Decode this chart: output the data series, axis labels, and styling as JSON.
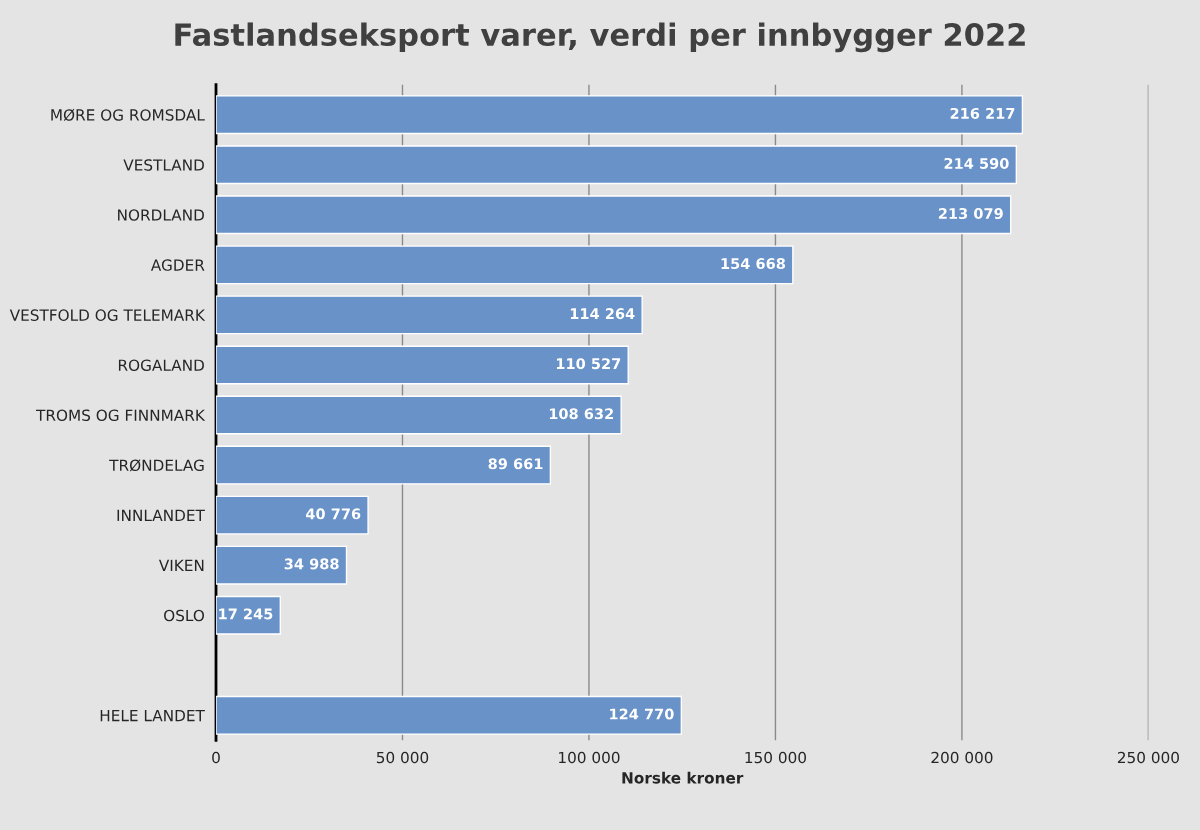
{
  "chart_data": {
    "type": "bar",
    "orientation": "horizontal",
    "title": "Fastlandseksport varer, verdi per innbygger 2022",
    "xlabel": "Norske kroner",
    "categories": [
      "MØRE OG ROMSDAL",
      "VESTLAND",
      "NORDLAND",
      "AGDER",
      "VESTFOLD OG TELEMARK",
      "ROGALAND",
      "TROMS OG FINNMARK",
      "TRØNDELAG",
      "INNLANDET",
      "VIKEN",
      "OSLO",
      null,
      "HELE LANDET"
    ],
    "values": [
      216217,
      214590,
      213079,
      154668,
      114264,
      110527,
      108632,
      89661,
      40776,
      34988,
      17245,
      null,
      124770
    ],
    "value_labels": [
      "216 217",
      "214 590",
      "213 079",
      "154 668",
      "114 264",
      "110 527",
      "108 632",
      "89 661",
      "40 776",
      "34 988",
      "17 245",
      null,
      "124 770"
    ],
    "color": "#6892c8",
    "xlim": [
      0,
      250000
    ],
    "xticks": [
      0,
      {
        "value": 50000,
        "label": "50 000"
      },
      {
        "value": 100000,
        "label": "100 000"
      },
      {
        "value": 150000,
        "label": "150 000"
      },
      {
        "value": 200000,
        "label": "200 000"
      },
      {
        "value": 250000,
        "label": "250 000"
      }
    ],
    "grid": "x"
  }
}
